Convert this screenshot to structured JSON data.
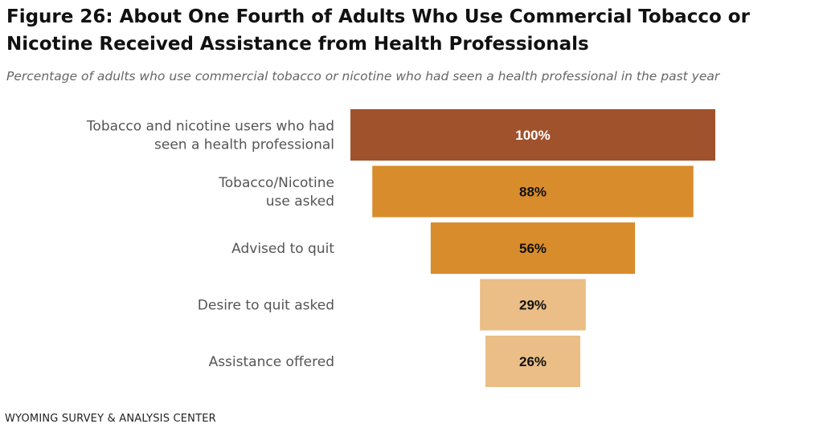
{
  "title": "Figure 26: About One Fourth of Adults Who Use Commercial Tobacco or Nicotine Received Assistance from Health Professionals",
  "subtitle": "Percentage of adults who use commercial tobacco or nicotine who had seen a health professional in the past year",
  "footer": "WYOMING SURVEY & ANALYSIS CENTER",
  "chart_data": {
    "type": "bar",
    "variant": "funnel",
    "categories": [
      "Tobacco and nicotine users who had seen a health professional",
      "Tobacco/Nicotine use asked",
      "Advised to quit",
      "Desire to quit asked",
      "Assistance offered"
    ],
    "category_lines": [
      [
        "Tobacco and nicotine users who had",
        "seen a health professional"
      ],
      [
        "Tobacco/Nicotine",
        "use asked"
      ],
      [
        "Advised to quit"
      ],
      [
        "Desire to quit asked"
      ],
      [
        "Assistance offered"
      ]
    ],
    "values": [
      100,
      88,
      56,
      29,
      26
    ],
    "value_labels": [
      "100%",
      "88%",
      "56%",
      "29%",
      "26%"
    ],
    "xlim": [
      0,
      100
    ],
    "bar_colors": [
      "#A0522D",
      "#D98C2B",
      "#D98C2B",
      "#EABE86",
      "#EABE86"
    ],
    "label_colors": [
      "#ffffff",
      "#111111",
      "#111111",
      "#111111",
      "#111111"
    ],
    "grid": false,
    "legend": "none"
  }
}
